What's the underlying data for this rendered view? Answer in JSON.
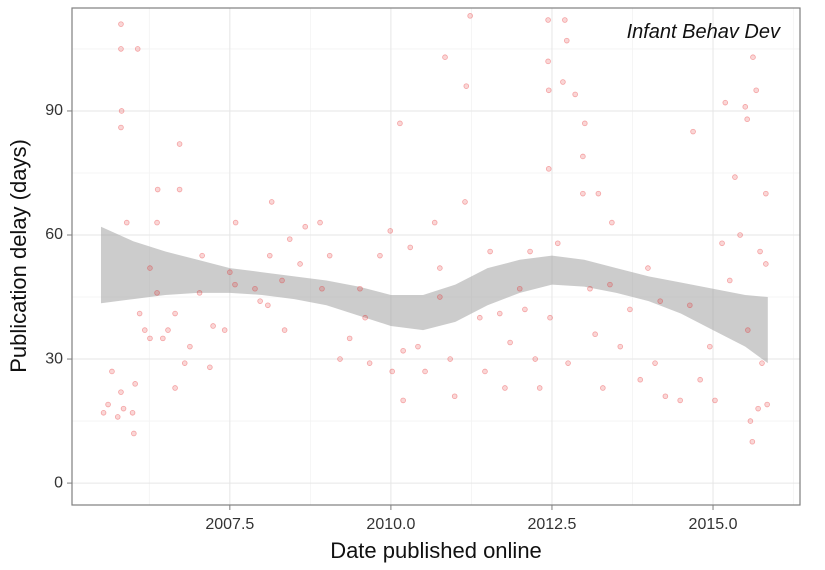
{
  "chart_data": {
    "type": "scatter",
    "annotation": "Infant Behav Dev",
    "x_label": "Date published online",
    "y_label": "Publication delay (days)",
    "xlim": [
      2005.05,
      2016.35
    ],
    "ylim": [
      -5.3,
      114.9
    ],
    "xticks": [
      2007.5,
      {
        "value": 2010,
        "label": "2010.0"
      },
      2012.5,
      {
        "value": 2015,
        "label": "2015.0"
      }
    ],
    "yticks": [
      0,
      30,
      60,
      90
    ],
    "grid": true,
    "color": "#e41a1c",
    "x": [
      2005.54,
      2005.61,
      2005.67,
      2005.76,
      2005.81,
      2005.81,
      2005.82,
      2005.81,
      2005.81,
      2005.85,
      2005.9,
      2005.99,
      2006.01,
      2006.03,
      2006.07,
      2006.1,
      2006.18,
      2006.26,
      2006.26,
      2006.37,
      2006.37,
      2006.38,
      2006.46,
      2006.54,
      2006.65,
      2006.65,
      2006.72,
      2006.72,
      2006.8,
      2006.88,
      2007.03,
      2007.07,
      2007.19,
      2007.24,
      2007.42,
      2007.5,
      2007.58,
      2007.59,
      2007.89,
      2007.97,
      2008.09,
      2008.12,
      2008.15,
      2008.31,
      2008.35,
      2008.43,
      2008.59,
      2008.67,
      2008.9,
      2008.93,
      2009.05,
      2009.21,
      2009.36,
      2009.52,
      2009.6,
      2009.67,
      2009.83,
      2009.99,
      2010.02,
      2010.14,
      2010.19,
      2010.19,
      2010.3,
      2010.42,
      2010.53,
      2010.68,
      2010.76,
      2010.84,
      2010.76,
      2010.92,
      2010.99,
      2011.15,
      2011.17,
      2011.23,
      2011.38,
      2011.46,
      2011.54,
      2011.69,
      2011.77,
      2011.85,
      2012.0,
      2012.08,
      2012.16,
      2012.24,
      2012.31,
      2012.44,
      2012.44,
      2012.45,
      2012.45,
      2012.47,
      2012.59,
      2012.67,
      2012.7,
      2012.73,
      2012.75,
      2012.86,
      2013.01,
      2012.98,
      2012.98,
      2013.09,
      2013.17,
      2013.22,
      2013.29,
      2013.4,
      2013.43,
      2013.56,
      2013.71,
      2013.87,
      2013.99,
      2014.1,
      2014.18,
      2014.26,
      2014.49,
      2014.64,
      2014.69,
      2014.8,
      2014.95,
      2015.03,
      2015.14,
      2015.19,
      2015.26,
      2015.34,
      2015.42,
      2015.5,
      2015.53,
      2015.54,
      2015.58,
      2015.61,
      2015.62,
      2015.67,
      2015.7,
      2015.73,
      2015.76,
      2015.82,
      2015.84,
      2015.82
    ],
    "y": [
      17,
      19,
      27,
      16,
      111,
      105,
      90,
      86,
      22,
      18,
      63,
      17,
      12,
      24,
      105,
      41,
      37,
      35,
      52,
      46,
      63,
      71,
      35,
      37,
      41,
      23,
      82,
      71,
      29,
      33,
      46,
      55,
      28,
      38,
      37,
      51,
      48,
      63,
      47,
      44,
      43,
      55,
      68,
      49,
      37,
      59,
      53,
      62,
      63,
      47,
      55,
      30,
      35,
      47,
      40,
      29,
      55,
      61,
      27,
      87,
      32,
      20,
      57,
      33,
      27,
      63,
      45,
      103,
      52,
      30,
      21,
      68,
      96,
      113,
      40,
      27,
      56,
      41,
      23,
      34,
      47,
      42,
      56,
      30,
      23,
      112,
      102,
      76,
      95,
      40,
      58,
      97,
      112,
      107,
      29,
      94,
      87,
      79,
      70,
      47,
      36,
      70,
      23,
      48,
      63,
      33,
      42,
      25,
      52,
      29,
      44,
      21,
      20,
      43,
      85,
      25,
      33,
      20,
      58,
      92,
      49,
      74,
      60,
      91,
      88,
      37,
      15,
      10,
      103,
      95,
      18,
      56,
      29,
      70,
      19,
      53
    ],
    "ribbon": {
      "color": "#999999",
      "x": [
        2005.5,
        2006.0,
        2006.5,
        2007.0,
        2007.5,
        2008.0,
        2008.5,
        2009.0,
        2009.5,
        2010.0,
        2010.5,
        2011.0,
        2011.5,
        2012.0,
        2012.5,
        2013.0,
        2013.5,
        2014.0,
        2014.5,
        2015.0,
        2015.5,
        2015.85
      ],
      "lower": [
        43.5,
        44.5,
        45.5,
        46,
        46,
        45.5,
        44.5,
        43,
        40.5,
        38,
        37,
        39,
        43,
        46,
        48,
        47.5,
        46,
        44,
        41,
        37,
        33,
        29
      ],
      "upper": [
        62,
        58.5,
        56,
        54,
        52,
        51,
        50,
        49,
        47.5,
        45.5,
        45.5,
        48,
        52,
        54,
        55,
        54,
        52,
        50,
        48.5,
        47,
        45.5,
        45
      ]
    }
  }
}
